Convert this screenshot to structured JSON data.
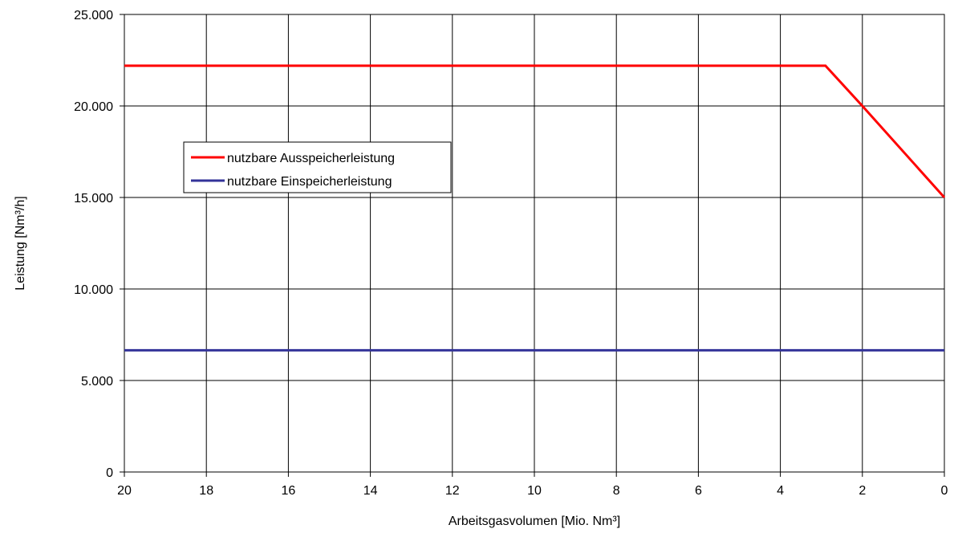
{
  "chart_data": {
    "type": "line",
    "xlabel": "Arbeitsgasvolumen [Mio. Nm³]",
    "ylabel": "Leistung [Nm³/h]",
    "xlim": [
      20,
      0
    ],
    "x_reversed": true,
    "ylim": [
      0,
      25000
    ],
    "x_ticks": [
      20,
      18,
      16,
      14,
      12,
      10,
      8,
      6,
      4,
      2,
      0
    ],
    "x_tick_labels": [
      "20",
      "18",
      "16",
      "14",
      "12",
      "10",
      "8",
      "6",
      "4",
      "2",
      "0"
    ],
    "y_ticks": [
      0,
      5000,
      10000,
      15000,
      20000,
      25000
    ],
    "y_tick_labels": [
      "0",
      "5.000",
      "10.000",
      "15.000",
      "20.000",
      "25.000"
    ],
    "grid": true,
    "legend_position": "upper-left-inside",
    "series": [
      {
        "name": "nutzbare Ausspeicherleistung",
        "color": "#ff0000",
        "x": [
          20,
          2.9,
          2,
          0
        ],
        "y": [
          22200,
          22200,
          20000,
          15000
        ]
      },
      {
        "name": "nutzbare Einspeicherleistung",
        "color": "#333399",
        "x": [
          20,
          0
        ],
        "y": [
          6650,
          6650
        ]
      }
    ]
  }
}
